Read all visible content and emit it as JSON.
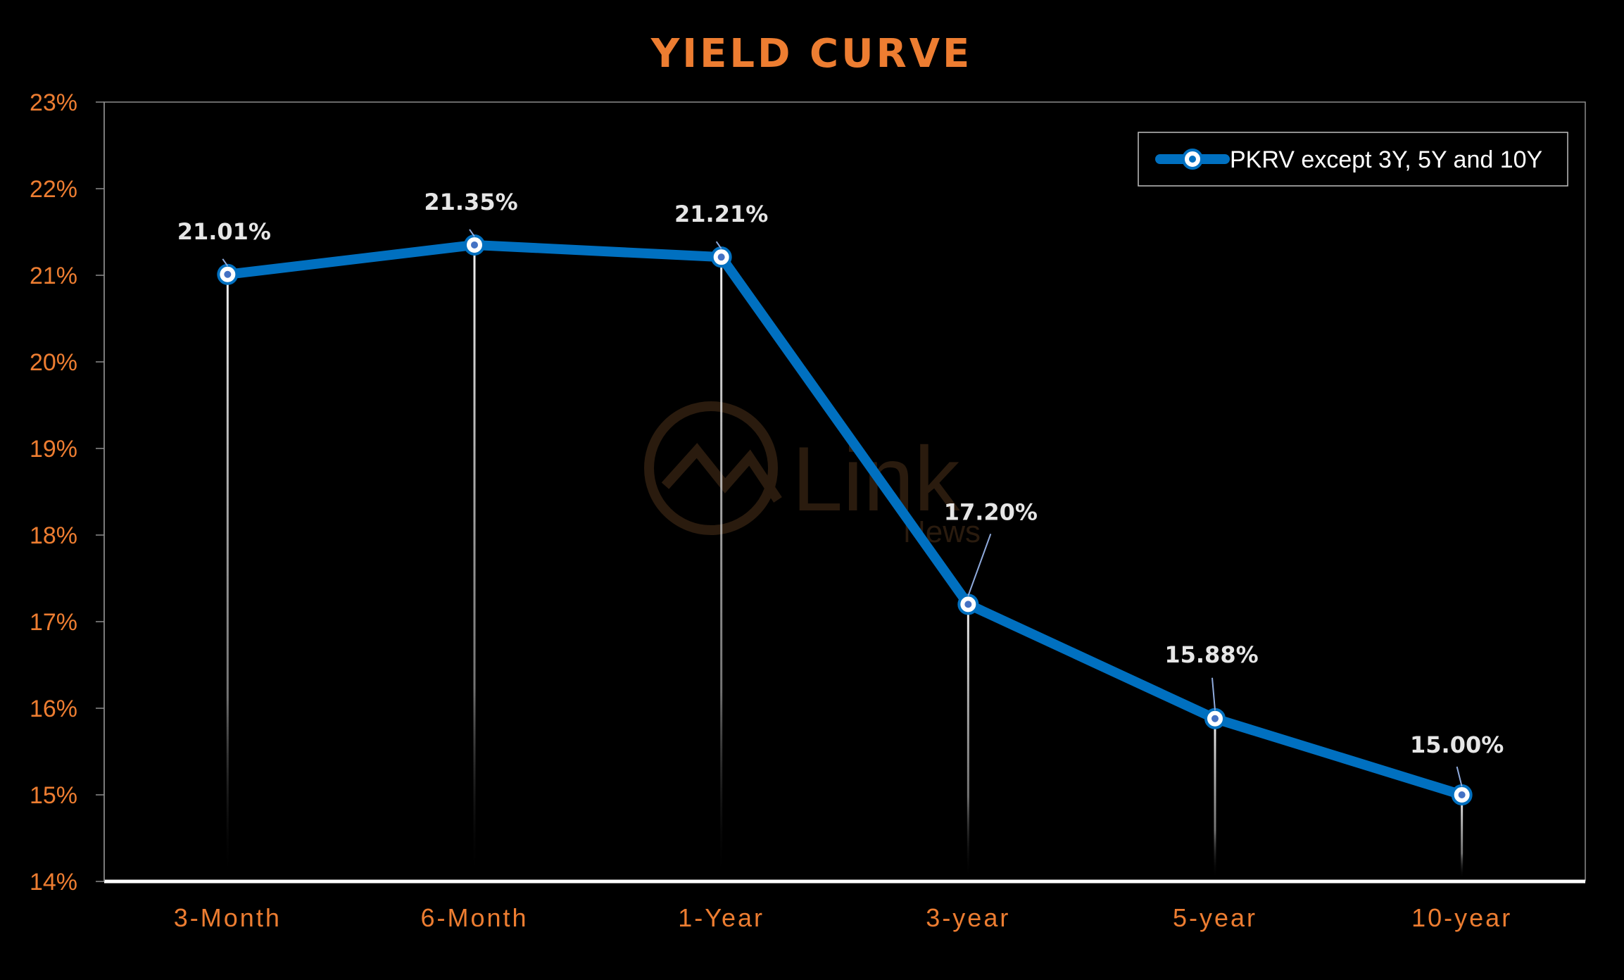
{
  "chart_data": {
    "type": "line",
    "title": "YIELD CURVE",
    "categories": [
      "3-Month",
      "6-Month",
      "1-Year",
      "3-year",
      "5-year",
      "10-year"
    ],
    "series": [
      {
        "name": "PKRV except 3Y, 5Y and 10Y",
        "values": [
          21.01,
          21.35,
          21.21,
          17.2,
          15.88,
          15.0
        ],
        "labels": [
          "21.01%",
          "21.35%",
          "21.21%",
          "17.20%",
          "15.88%",
          "15.00%"
        ],
        "color": "#0070C0"
      }
    ],
    "ylim": [
      14,
      23
    ],
    "yticks": [
      "14%",
      "15%",
      "16%",
      "17%",
      "18%",
      "19%",
      "20%",
      "21%",
      "22%",
      "23%"
    ],
    "xlabel": "",
    "ylabel": "",
    "grid": false,
    "drop_lines": true,
    "legend_position": "top-right",
    "colors": {
      "background": "#000000",
      "accent": "#ED7D31",
      "line": "#0070C0",
      "label": "#E6E6E6"
    }
  },
  "watermark": {
    "text": "Link",
    "sub": "News"
  }
}
